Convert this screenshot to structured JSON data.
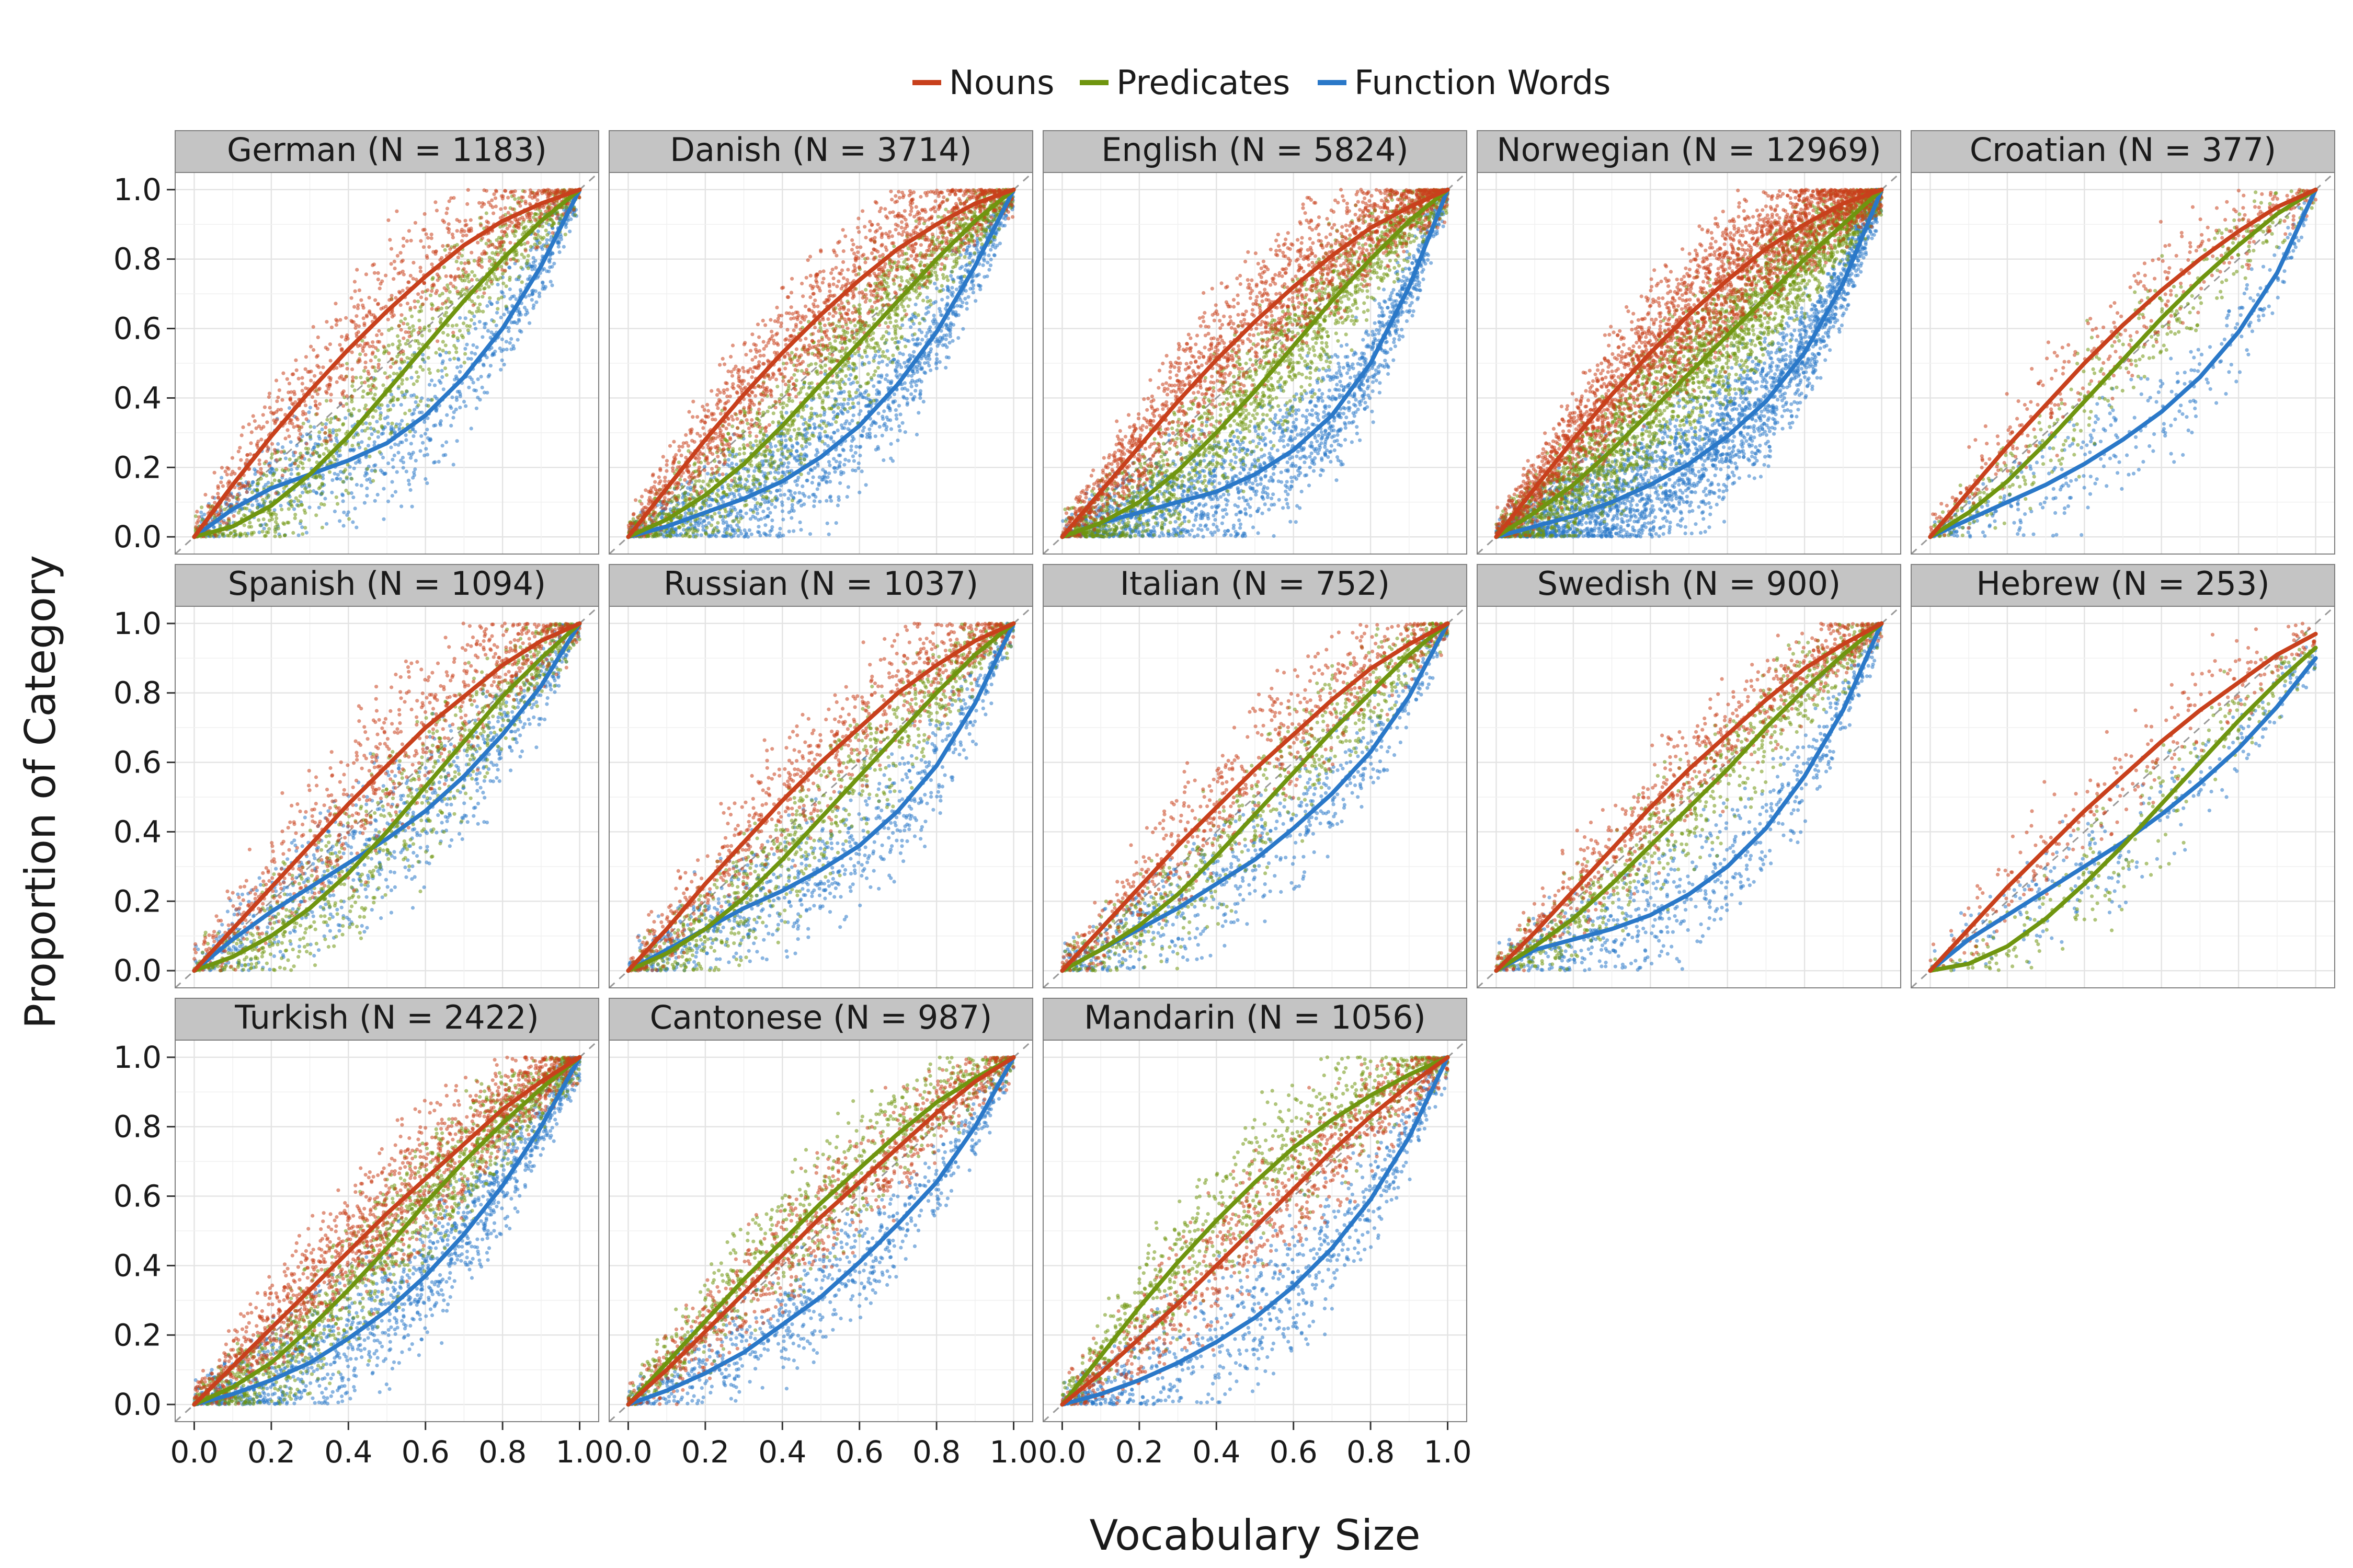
{
  "chart_data": {
    "type": "scatter",
    "xlabel": "Vocabulary Size",
    "ylabel": "Proportion of Category",
    "xlim": [
      0,
      1
    ],
    "ylim": [
      0,
      1
    ],
    "x_ticks": [
      "0.0",
      "0.2",
      "0.4",
      "0.6",
      "0.8",
      "1.0"
    ],
    "y_ticks": [
      "0.0",
      "0.2",
      "0.4",
      "0.6",
      "0.8",
      "1.0"
    ],
    "grid": true,
    "legend_position": "top",
    "reference_line": "diagonal y = x (dashed)",
    "legend": [
      {
        "name": "Nouns",
        "color": "#c8401c"
      },
      {
        "name": "Predicates",
        "color": "#6f950f"
      },
      {
        "name": "Function Words",
        "color": "#2a78c8"
      }
    ],
    "curve_x": [
      0,
      0.1,
      0.2,
      0.3,
      0.4,
      0.5,
      0.6,
      0.7,
      0.8,
      0.9,
      1.0
    ],
    "panels": [
      {
        "label": "German (N = 1183)",
        "series": [
          {
            "name": "Nouns",
            "y": [
              0,
              0.15,
              0.29,
              0.42,
              0.54,
              0.65,
              0.75,
              0.84,
              0.91,
              0.96,
              1.0
            ]
          },
          {
            "name": "Predicates",
            "y": [
              0,
              0.03,
              0.09,
              0.18,
              0.29,
              0.42,
              0.55,
              0.68,
              0.8,
              0.91,
              1.0
            ]
          },
          {
            "name": "Function Words",
            "y": [
              0,
              0.08,
              0.14,
              0.18,
              0.22,
              0.27,
              0.35,
              0.46,
              0.6,
              0.78,
              1.0
            ]
          }
        ]
      },
      {
        "label": "Danish (N = 3714)",
        "series": [
          {
            "name": "Nouns",
            "y": [
              0,
              0.14,
              0.28,
              0.41,
              0.53,
              0.64,
              0.74,
              0.83,
              0.9,
              0.96,
              1.0
            ]
          },
          {
            "name": "Predicates",
            "y": [
              0,
              0.05,
              0.12,
              0.21,
              0.32,
              0.44,
              0.56,
              0.68,
              0.8,
              0.91,
              1.0
            ]
          },
          {
            "name": "Function Words",
            "y": [
              0,
              0.03,
              0.07,
              0.11,
              0.16,
              0.23,
              0.32,
              0.44,
              0.59,
              0.78,
              1.0
            ]
          }
        ]
      },
      {
        "label": "English (N = 5824)",
        "series": [
          {
            "name": "Nouns",
            "y": [
              0,
              0.13,
              0.26,
              0.39,
              0.51,
              0.62,
              0.72,
              0.81,
              0.89,
              0.95,
              1.0
            ]
          },
          {
            "name": "Predicates",
            "y": [
              0,
              0.04,
              0.1,
              0.19,
              0.3,
              0.42,
              0.55,
              0.68,
              0.8,
              0.91,
              1.0
            ]
          },
          {
            "name": "Function Words",
            "y": [
              0,
              0.04,
              0.07,
              0.1,
              0.13,
              0.18,
              0.25,
              0.35,
              0.5,
              0.72,
              1.0
            ]
          }
        ]
      },
      {
        "label": "Norwegian (N = 12969)",
        "series": [
          {
            "name": "Nouns",
            "y": [
              0,
              0.14,
              0.28,
              0.41,
              0.53,
              0.64,
              0.74,
              0.83,
              0.9,
              0.96,
              1.0
            ]
          },
          {
            "name": "Predicates",
            "y": [
              0,
              0.07,
              0.15,
              0.25,
              0.36,
              0.47,
              0.58,
              0.69,
              0.8,
              0.9,
              1.0
            ]
          },
          {
            "name": "Function Words",
            "y": [
              0,
              0.03,
              0.06,
              0.1,
              0.15,
              0.21,
              0.29,
              0.39,
              0.53,
              0.73,
              1.0
            ]
          }
        ]
      },
      {
        "label": "Croatian (N = 377)",
        "series": [
          {
            "name": "Nouns",
            "y": [
              0,
              0.13,
              0.26,
              0.38,
              0.5,
              0.61,
              0.71,
              0.8,
              0.88,
              0.95,
              1.0
            ]
          },
          {
            "name": "Predicates",
            "y": [
              0,
              0.07,
              0.16,
              0.27,
              0.39,
              0.51,
              0.63,
              0.74,
              0.84,
              0.93,
              1.0
            ]
          },
          {
            "name": "Function Words",
            "y": [
              0,
              0.05,
              0.1,
              0.15,
              0.21,
              0.28,
              0.36,
              0.46,
              0.59,
              0.76,
              1.0
            ]
          }
        ]
      },
      {
        "label": "Spanish (N = 1094)",
        "series": [
          {
            "name": "Nouns",
            "y": [
              0,
              0.12,
              0.24,
              0.36,
              0.48,
              0.59,
              0.7,
              0.79,
              0.88,
              0.95,
              1.0
            ]
          },
          {
            "name": "Predicates",
            "y": [
              0,
              0.04,
              0.1,
              0.18,
              0.28,
              0.4,
              0.53,
              0.66,
              0.79,
              0.9,
              1.0
            ]
          },
          {
            "name": "Function Words",
            "y": [
              0,
              0.09,
              0.17,
              0.24,
              0.31,
              0.38,
              0.46,
              0.56,
              0.68,
              0.82,
              1.0
            ]
          }
        ]
      },
      {
        "label": "Russian (N = 1037)",
        "series": [
          {
            "name": "Nouns",
            "y": [
              0,
              0.12,
              0.25,
              0.37,
              0.49,
              0.6,
              0.7,
              0.8,
              0.88,
              0.95,
              1.0
            ]
          },
          {
            "name": "Predicates",
            "y": [
              0,
              0.05,
              0.12,
              0.21,
              0.32,
              0.44,
              0.56,
              0.68,
              0.8,
              0.91,
              1.0
            ]
          },
          {
            "name": "Function Words",
            "y": [
              0,
              0.06,
              0.12,
              0.18,
              0.23,
              0.29,
              0.36,
              0.46,
              0.59,
              0.77,
              1.0
            ]
          }
        ]
      },
      {
        "label": "Italian (N = 752)",
        "series": [
          {
            "name": "Nouns",
            "y": [
              0,
              0.12,
              0.24,
              0.36,
              0.47,
              0.58,
              0.68,
              0.78,
              0.87,
              0.94,
              1.0
            ]
          },
          {
            "name": "Predicates",
            "y": [
              0,
              0.06,
              0.13,
              0.22,
              0.33,
              0.45,
              0.57,
              0.69,
              0.8,
              0.91,
              1.0
            ]
          },
          {
            "name": "Function Words",
            "y": [
              0,
              0.06,
              0.12,
              0.18,
              0.25,
              0.32,
              0.41,
              0.51,
              0.63,
              0.79,
              1.0
            ]
          }
        ]
      },
      {
        "label": "Swedish (N = 900)",
        "series": [
          {
            "name": "Nouns",
            "y": [
              0,
              0.11,
              0.23,
              0.35,
              0.47,
              0.58,
              0.68,
              0.78,
              0.87,
              0.94,
              1.0
            ]
          },
          {
            "name": "Predicates",
            "y": [
              0,
              0.07,
              0.15,
              0.25,
              0.36,
              0.47,
              0.58,
              0.7,
              0.81,
              0.91,
              1.0
            ]
          },
          {
            "name": "Function Words",
            "y": [
              0,
              0.06,
              0.09,
              0.12,
              0.16,
              0.22,
              0.3,
              0.41,
              0.56,
              0.75,
              1.0
            ]
          }
        ]
      },
      {
        "label": "Hebrew (N = 253)",
        "series": [
          {
            "name": "Nouns",
            "y": [
              0,
              0.12,
              0.24,
              0.35,
              0.46,
              0.56,
              0.66,
              0.75,
              0.83,
              0.91,
              0.97
            ]
          },
          {
            "name": "Predicates",
            "y": [
              0,
              0.02,
              0.07,
              0.15,
              0.25,
              0.36,
              0.48,
              0.6,
              0.72,
              0.83,
              0.93
            ]
          },
          {
            "name": "Function Words",
            "y": [
              0,
              0.09,
              0.16,
              0.23,
              0.3,
              0.37,
              0.45,
              0.54,
              0.64,
              0.76,
              0.9
            ]
          }
        ]
      },
      {
        "label": "Turkish (N = 2422)",
        "series": [
          {
            "name": "Nouns",
            "y": [
              0,
              0.11,
              0.22,
              0.33,
              0.44,
              0.55,
              0.65,
              0.75,
              0.85,
              0.93,
              1.0
            ]
          },
          {
            "name": "Predicates",
            "y": [
              0,
              0.05,
              0.12,
              0.22,
              0.33,
              0.45,
              0.58,
              0.7,
              0.81,
              0.91,
              1.0
            ]
          },
          {
            "name": "Function Words",
            "y": [
              0,
              0.03,
              0.07,
              0.12,
              0.19,
              0.27,
              0.37,
              0.49,
              0.63,
              0.8,
              1.0
            ]
          }
        ]
      },
      {
        "label": "Cantonese (N = 987)",
        "series": [
          {
            "name": "Nouns",
            "y": [
              0,
              0.1,
              0.21,
              0.32,
              0.43,
              0.54,
              0.64,
              0.74,
              0.84,
              0.93,
              1.0
            ]
          },
          {
            "name": "Predicates",
            "y": [
              0,
              0.12,
              0.24,
              0.36,
              0.47,
              0.58,
              0.68,
              0.78,
              0.87,
              0.94,
              1.0
            ]
          },
          {
            "name": "Function Words",
            "y": [
              0,
              0.04,
              0.09,
              0.15,
              0.23,
              0.31,
              0.41,
              0.52,
              0.64,
              0.8,
              1.0
            ]
          }
        ]
      },
      {
        "label": "Mandarin (N = 1056)",
        "series": [
          {
            "name": "Nouns",
            "y": [
              0,
              0.09,
              0.19,
              0.29,
              0.4,
              0.51,
              0.62,
              0.73,
              0.83,
              0.92,
              1.0
            ]
          },
          {
            "name": "Predicates",
            "y": [
              0,
              0.14,
              0.28,
              0.41,
              0.53,
              0.64,
              0.74,
              0.82,
              0.89,
              0.95,
              1.0
            ]
          },
          {
            "name": "Function Words",
            "y": [
              0,
              0.03,
              0.07,
              0.12,
              0.18,
              0.25,
              0.34,
              0.45,
              0.59,
              0.77,
              1.0
            ]
          }
        ]
      }
    ]
  }
}
